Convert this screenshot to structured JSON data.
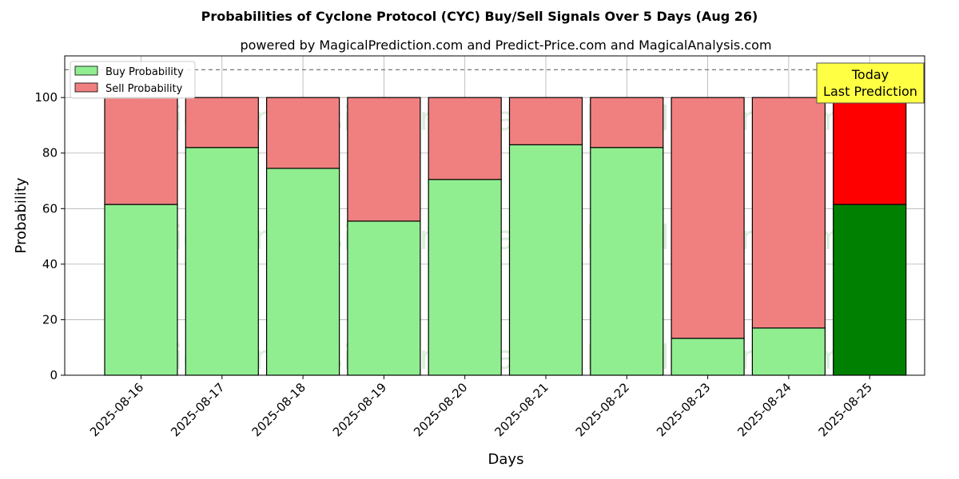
{
  "chart_data": {
    "type": "bar",
    "stacked": true,
    "title": "Probabilities of Cyclone Protocol (CYC) Buy/Sell Signals Over 5 Days (Aug 26)",
    "subtitle": "powered by MagicalPrediction.com and Predict-Price.com and MagicalAnalysis.com",
    "xlabel": "Days",
    "ylabel": "Probability",
    "ylim": [
      0,
      115
    ],
    "yticks": [
      0,
      20,
      40,
      60,
      80,
      100
    ],
    "threshold_line": 110,
    "categories": [
      "2025-08-16",
      "2025-08-17",
      "2025-08-18",
      "2025-08-19",
      "2025-08-20",
      "2025-08-21",
      "2025-08-22",
      "2025-08-23",
      "2025-08-24",
      "2025-08-25"
    ],
    "series": [
      {
        "name": "Buy Probability",
        "values": [
          61.5,
          82.0,
          74.5,
          55.5,
          70.5,
          83.0,
          82.0,
          13.3,
          17.0,
          61.5
        ]
      },
      {
        "name": "Sell Probability",
        "values": [
          38.5,
          18.0,
          25.5,
          44.5,
          29.5,
          17.0,
          18.0,
          86.7,
          83.0,
          38.5
        ]
      }
    ],
    "legend": {
      "position": "top-left",
      "entries": [
        "Buy Probability",
        "Sell Probability"
      ]
    },
    "annotation": {
      "line1": "Today",
      "line2": "Last Prediction",
      "target_category": "2025-08-25"
    },
    "watermarks": [
      "MagicalAnalysis.com",
      "MagicalPrediction.com",
      "MagicalAnalysis.com",
      "MagicalPrediction.com",
      "MagicalAnalysis.com",
      "MagicalPrediction.com"
    ],
    "grid": true
  },
  "colors": {
    "buy": "#90ee90",
    "sell": "#f08080",
    "buy_highlight": "#008000",
    "sell_highlight": "#ff0000",
    "annotation_bg": "#ffff44",
    "grid": "#b0b0b0"
  }
}
